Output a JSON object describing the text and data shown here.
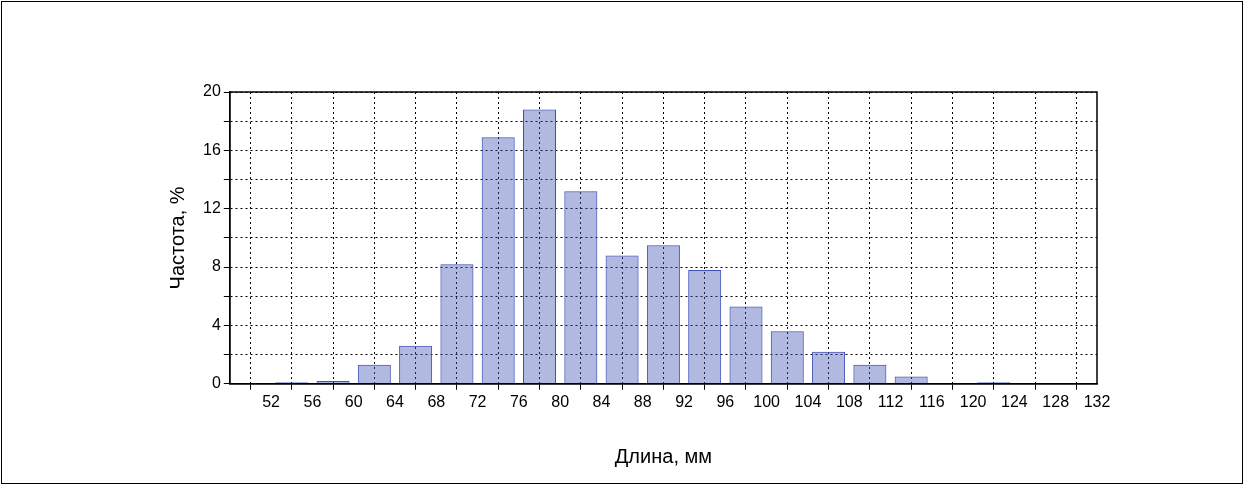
{
  "chart_data": {
    "type": "histogram",
    "xlabel": "Длина, мм",
    "ylabel": "Частота, %",
    "bins": [
      48,
      52,
      56,
      60,
      64,
      68,
      72,
      76,
      80,
      84,
      88,
      92,
      96,
      100,
      104,
      108,
      112,
      116,
      120,
      124,
      128,
      132
    ],
    "values": [
      0,
      0.1,
      0.2,
      1.3,
      2.6,
      8.2,
      16.9,
      18.8,
      13.2,
      8.8,
      9.5,
      7.8,
      5.3,
      3.6,
      2.2,
      1.3,
      0.5,
      0,
      0.1,
      0,
      0
    ],
    "color": "#3f51b5",
    "xlim": [
      48,
      132
    ],
    "xticks": [
      {
        "value": 48,
        "label": null
      },
      52,
      56,
      60,
      64,
      68,
      72,
      76,
      80,
      84,
      88,
      92,
      96,
      100,
      104,
      108,
      112,
      116,
      120,
      124,
      128,
      132
    ],
    "ylim": [
      0,
      20
    ],
    "yticks": [
      0,
      {
        "value": 2,
        "label": null
      },
      4,
      {
        "value": 6,
        "label": null
      },
      8,
      {
        "value": 10,
        "label": null
      },
      12,
      {
        "value": 14,
        "label": null
      },
      16,
      {
        "value": 18,
        "label": null
      },
      20
    ],
    "grid": true
  }
}
